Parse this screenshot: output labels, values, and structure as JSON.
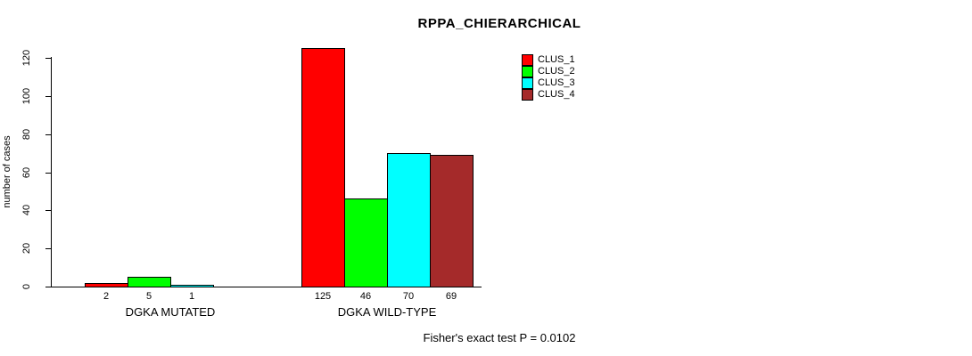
{
  "chart_data": {
    "type": "bar",
    "title": "RPPA_CHIERARCHICAL",
    "ylabel": "number of cases",
    "ylim": [
      0,
      120
    ],
    "yticks": [
      0,
      20,
      40,
      60,
      80,
      100,
      120
    ],
    "grid": false,
    "legend_position": "top-right",
    "series": [
      {
        "name": "CLUS_1",
        "color": "#FF0000"
      },
      {
        "name": "CLUS_2",
        "color": "#00FF00"
      },
      {
        "name": "CLUS_3",
        "color": "#00FFFF"
      },
      {
        "name": "CLUS_4",
        "color": "#A52A2A"
      }
    ],
    "groups": [
      {
        "label": "DGKA MUTATED",
        "values": [
          2,
          5,
          1,
          0
        ],
        "value_labels": [
          "2",
          "5",
          "1",
          ""
        ]
      },
      {
        "label": "DGKA WILD-TYPE",
        "values": [
          125,
          46,
          70,
          69
        ],
        "value_labels": [
          "125",
          "46",
          "70",
          "69"
        ]
      }
    ],
    "annotation": "Fisher's exact test P = 0.0102"
  }
}
